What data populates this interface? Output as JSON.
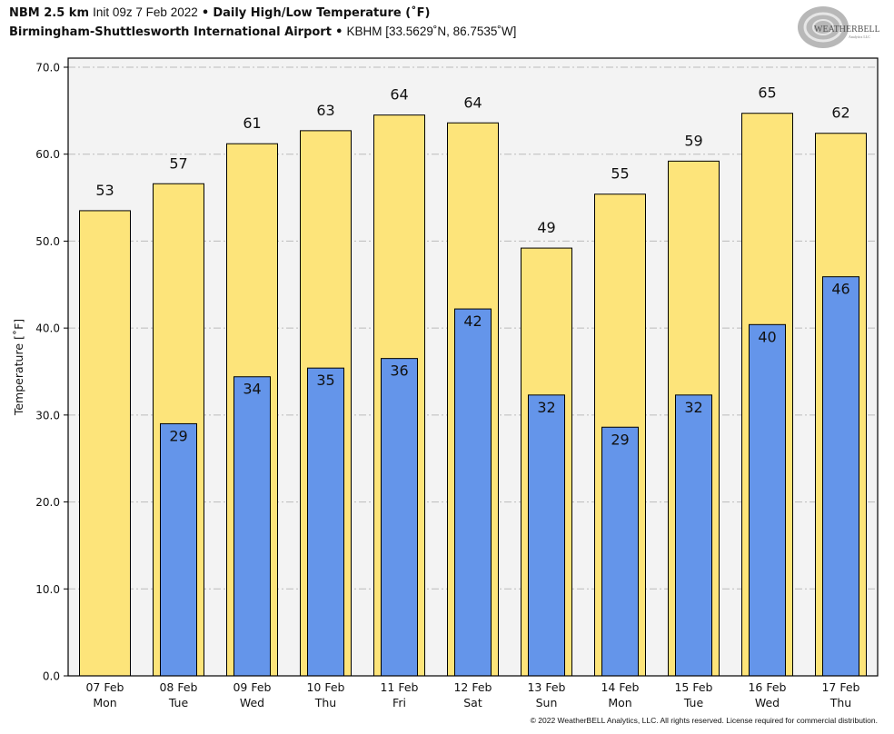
{
  "header": {
    "model": "NBM 2.5 km",
    "init": "Init 09z 7 Feb 2022",
    "bullet": "•",
    "product": "Daily High/Low Temperature (˚F)",
    "location": "Birmingham-Shuttlesworth International Airport",
    "station": "KBHM [33.5629˚N, 86.7535˚W]"
  },
  "logo": {
    "text_main": "WEATHERBELL",
    "text_sub": "Analytics LLC"
  },
  "footer": {
    "copyright": "© 2022 WeatherBELL Analytics, LLC. All rights reserved. License required for commercial distribution."
  },
  "colors": {
    "high_bar": "#fde47a",
    "low_bar": "#6495ea",
    "plot_bg": "#f3f3f3",
    "grid": "#bbbbbb"
  },
  "chart_data": {
    "type": "bar",
    "title": "Daily High/Low Temperature (˚F)",
    "xlabel": "",
    "ylabel": "Temperature [˚F]",
    "ylim": [
      0,
      71
    ],
    "yticks": [
      "0.0",
      "10.0",
      "20.0",
      "30.0",
      "40.0",
      "50.0",
      "60.0",
      "70.0"
    ],
    "ytick_values": [
      0,
      10,
      20,
      30,
      40,
      50,
      60,
      70
    ],
    "grid": true,
    "categories": [
      {
        "date": "07 Feb",
        "day": "Mon"
      },
      {
        "date": "08 Feb",
        "day": "Tue"
      },
      {
        "date": "09 Feb",
        "day": "Wed"
      },
      {
        "date": "10 Feb",
        "day": "Thu"
      },
      {
        "date": "11 Feb",
        "day": "Fri"
      },
      {
        "date": "12 Feb",
        "day": "Sat"
      },
      {
        "date": "13 Feb",
        "day": "Sun"
      },
      {
        "date": "14 Feb",
        "day": "Mon"
      },
      {
        "date": "15 Feb",
        "day": "Tue"
      },
      {
        "date": "16 Feb",
        "day": "Wed"
      },
      {
        "date": "17 Feb",
        "day": "Thu"
      }
    ],
    "series": [
      {
        "name": "High",
        "values": [
          53.5,
          56.6,
          61.2,
          62.7,
          64.5,
          63.6,
          49.2,
          55.4,
          59.2,
          64.7,
          62.4
        ],
        "labels": [
          "53",
          "57",
          "61",
          "63",
          "64",
          "64",
          "49",
          "55",
          "59",
          "65",
          "62"
        ]
      },
      {
        "name": "Low",
        "values": [
          null,
          29.0,
          34.4,
          35.4,
          36.5,
          42.2,
          32.3,
          28.6,
          32.3,
          40.4,
          45.9
        ],
        "labels": [
          null,
          "29",
          "34",
          "35",
          "36",
          "42",
          "32",
          "29",
          "32",
          "40",
          "46"
        ]
      }
    ]
  }
}
